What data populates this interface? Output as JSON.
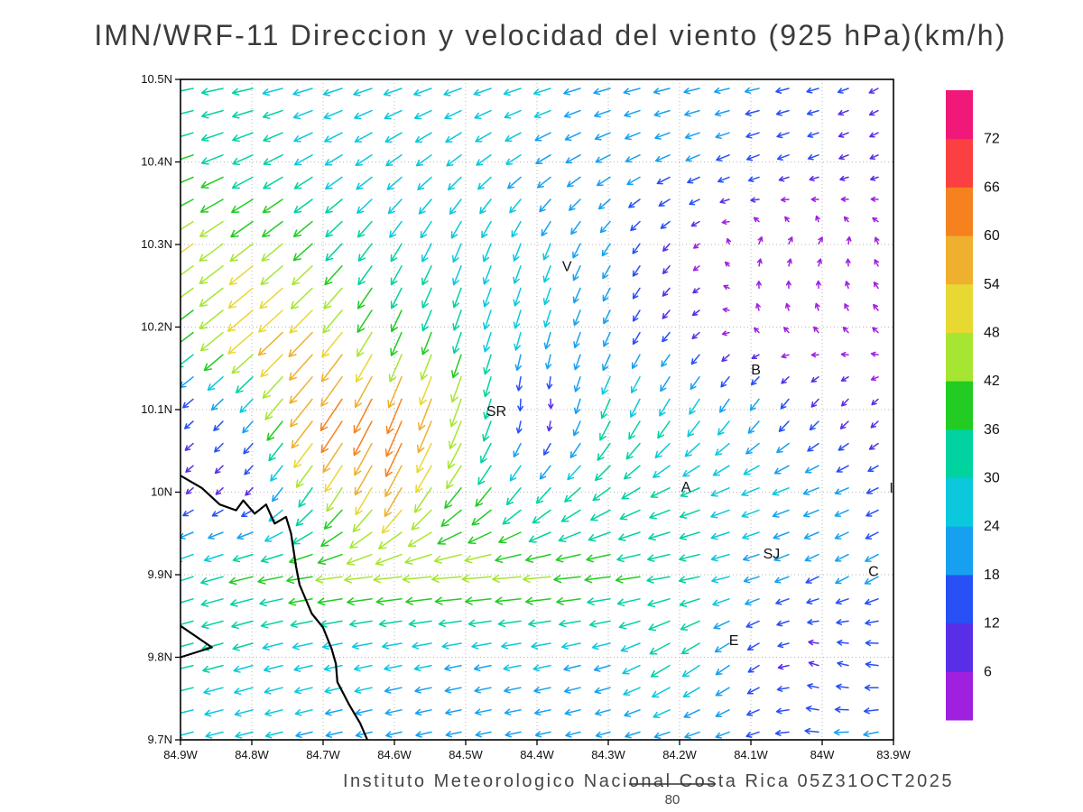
{
  "title": "IMN/WRF-11 Direccion y velocidad del viento (925 hPa)(km/h)",
  "footer": {
    "credit": "Instituto Meteorologico Nacional Costa Rica 05Z31OCT2025",
    "scale_label": "80"
  },
  "chart_data": {
    "type": "vector_field",
    "subtype": "wind direction and speed arrows colored by magnitude",
    "units": "km/h",
    "level": "925 hPa",
    "reference_vector_kmh": 80,
    "lon_range": [
      84.9,
      83.9
    ],
    "lat_range": [
      9.7,
      10.5
    ],
    "x_axis": {
      "tick_labels": [
        "84.9W",
        "84.8W",
        "84.7W",
        "84.6W",
        "84.5W",
        "84.4W",
        "84.3W",
        "84.2W",
        "84.1W",
        "84W",
        "83.9W"
      ],
      "tick_lons": [
        84.9,
        84.8,
        84.7,
        84.6,
        84.5,
        84.4,
        84.3,
        84.2,
        84.1,
        84.0,
        83.9
      ]
    },
    "y_axis": {
      "tick_labels": [
        "10.5N",
        "10.4N",
        "10.3N",
        "10.2N",
        "10.1N",
        "10N",
        "9.9N",
        "9.8N",
        "9.7N"
      ],
      "tick_lats": [
        10.5,
        10.4,
        10.3,
        10.2,
        10.1,
        10.0,
        9.9,
        9.8,
        9.7
      ]
    },
    "grid": "dotted",
    "colorbar": {
      "position": "right",
      "values": [
        6,
        12,
        18,
        24,
        30,
        36,
        42,
        48,
        54,
        60,
        66,
        72
      ],
      "colors": [
        "#a020e0",
        "#5a2ee6",
        "#2850f5",
        "#18a0f0",
        "#0cc8dc",
        "#00d2a0",
        "#22cc22",
        "#a6e632",
        "#e8d832",
        "#eeb02e",
        "#f5821e",
        "#fa4040",
        "#f01878"
      ]
    },
    "stations": [
      {
        "label": "V",
        "lon": 84.358,
        "lat": 10.273
      },
      {
        "label": "SR",
        "lon": 84.457,
        "lat": 10.098
      },
      {
        "label": "B",
        "lon": 84.093,
        "lat": 10.148
      },
      {
        "label": "A",
        "lon": 84.191,
        "lat": 10.006
      },
      {
        "label": "SJ",
        "lon": 84.071,
        "lat": 9.925
      },
      {
        "label": "C",
        "lon": 83.928,
        "lat": 9.904
      },
      {
        "label": "E",
        "lon": 84.124,
        "lat": 9.82
      },
      {
        "label": "I",
        "lon": 83.903,
        "lat": 10.005
      }
    ],
    "coastline_main": [
      [
        84.9,
        10.02
      ],
      [
        84.87,
        10.005
      ],
      [
        84.845,
        9.985
      ],
      [
        84.822,
        9.978
      ],
      [
        84.812,
        9.99
      ],
      [
        84.796,
        9.974
      ],
      [
        84.78,
        9.985
      ],
      [
        84.768,
        9.962
      ],
      [
        84.752,
        9.97
      ],
      [
        84.745,
        9.95
      ],
      [
        84.738,
        9.91
      ],
      [
        84.733,
        9.888
      ],
      [
        84.716,
        9.853
      ],
      [
        84.7,
        9.836
      ],
      [
        84.688,
        9.81
      ],
      [
        84.682,
        9.792
      ],
      [
        84.68,
        9.77
      ],
      [
        84.663,
        9.742
      ],
      [
        84.648,
        9.72
      ],
      [
        84.638,
        9.7
      ]
    ],
    "coastline_secondary": [
      [
        84.9,
        9.838
      ],
      [
        84.856,
        9.812
      ],
      [
        84.9,
        9.8
      ]
    ],
    "wind_grid": {
      "units": "km/h",
      "lons": [
        84.9,
        84.8,
        84.7,
        84.6,
        84.5,
        84.4,
        84.3,
        84.2,
        84.1,
        84.0,
        83.9
      ],
      "lats": [
        10.5,
        10.4,
        10.3,
        10.2,
        10.1,
        10.0,
        9.9,
        9.8,
        9.7
      ],
      "uv": [
        [
          [
            -34,
            -6
          ],
          [
            -30,
            -6
          ],
          [
            -28,
            -8
          ],
          [
            -26,
            -8
          ],
          [
            -25,
            -8
          ],
          [
            -24,
            -7
          ],
          [
            -23,
            -6
          ],
          [
            -22,
            -5
          ],
          [
            -19,
            -4
          ],
          [
            -14,
            -4
          ],
          [
            -8,
            -5
          ]
        ],
        [
          [
            -36,
            -12
          ],
          [
            -30,
            -14
          ],
          [
            -25,
            -15
          ],
          [
            -22,
            -16
          ],
          [
            -20,
            -16
          ],
          [
            -20,
            -13
          ],
          [
            -19,
            -10
          ],
          [
            -18,
            -8
          ],
          [
            -15,
            -6
          ],
          [
            -11,
            -4
          ],
          [
            -6,
            -3
          ]
        ],
        [
          [
            -40,
            -28
          ],
          [
            -36,
            -28
          ],
          [
            -28,
            -26
          ],
          [
            -16,
            -26
          ],
          [
            -11,
            -27
          ],
          [
            -9,
            -24
          ],
          [
            -10,
            -16
          ],
          [
            -6,
            -6
          ],
          [
            2,
            5
          ],
          [
            3,
            5
          ],
          [
            -3,
            4
          ]
        ],
        [
          [
            -30,
            -22
          ],
          [
            -42,
            -36
          ],
          [
            -38,
            -40
          ],
          [
            -16,
            -35
          ],
          [
            -10,
            -30
          ],
          [
            -7,
            -25
          ],
          [
            -8,
            -18
          ],
          [
            -8,
            -8
          ],
          [
            -2,
            4
          ],
          [
            -3,
            5
          ],
          [
            -4,
            4
          ]
        ],
        [
          [
            -9,
            -7
          ],
          [
            -14,
            -16
          ],
          [
            -40,
            -52
          ],
          [
            -26,
            -63
          ],
          [
            -16,
            -45
          ],
          [
            5,
            -2
          ],
          [
            -13,
            -30
          ],
          [
            -16,
            -26
          ],
          [
            -13,
            -18
          ],
          [
            -8,
            -10
          ],
          [
            -5,
            -5
          ]
        ],
        [
          [
            -6,
            -5
          ],
          [
            -7,
            -7
          ],
          [
            -22,
            -32
          ],
          [
            -28,
            -48
          ],
          [
            -26,
            -30
          ],
          [
            -21,
            -25
          ],
          [
            -26,
            -18
          ],
          [
            -29,
            -12
          ],
          [
            -26,
            -10
          ],
          [
            -21,
            -8
          ],
          [
            -12,
            -6
          ]
        ],
        [
          [
            -30,
            -10
          ],
          [
            -36,
            -9
          ],
          [
            -41,
            -6
          ],
          [
            -45,
            -5
          ],
          [
            -48,
            -4
          ],
          [
            -45,
            -4
          ],
          [
            -40,
            -5
          ],
          [
            -34,
            -6
          ],
          [
            -21,
            -6
          ],
          [
            -16,
            -8
          ],
          [
            -18,
            -10
          ]
        ],
        [
          [
            -34,
            -8
          ],
          [
            -28,
            -8
          ],
          [
            -26,
            -6
          ],
          [
            -25,
            -5
          ],
          [
            -23,
            -5
          ],
          [
            -25,
            -5
          ],
          [
            -22,
            -6
          ],
          [
            -30,
            -20
          ],
          [
            -13,
            -10
          ],
          [
            -9,
            4
          ],
          [
            -16,
            2
          ]
        ],
        [
          [
            -23,
            -6
          ],
          [
            -24,
            -6
          ],
          [
            -22,
            -5
          ],
          [
            -21,
            -5
          ],
          [
            -20,
            -4
          ],
          [
            -20,
            -4
          ],
          [
            -18,
            -5
          ],
          [
            -20,
            -6
          ],
          [
            -16,
            -6
          ],
          [
            -18,
            2
          ],
          [
            -20,
            -6
          ]
        ]
      ]
    }
  }
}
